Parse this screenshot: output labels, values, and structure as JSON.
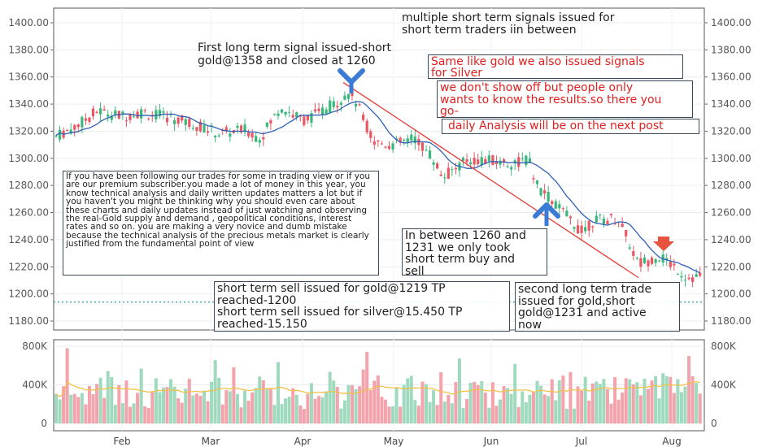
{
  "chart_data": {
    "type": "candlestick",
    "price_axis": {
      "ylim": [
        1180,
        1400
      ],
      "ticks": [
        "1400.00",
        "1380.00",
        "1360.00",
        "1340.00",
        "1320.00",
        "1300.00",
        "1280.00",
        "1260.00",
        "1240.00",
        "1220.00",
        "1200.00",
        "1180.00"
      ]
    },
    "volume_axis": {
      "ylim": [
        0,
        900000
      ],
      "ticks": [
        "800K",
        "400K",
        "0"
      ]
    },
    "x_ticks": [
      "Feb",
      "Mar",
      "Apr",
      "May",
      "Jun",
      "Jul",
      "Aug"
    ],
    "dotted_level": 1194,
    "trendline": {
      "from": [
        "Apr 20",
        1356
      ],
      "to": [
        "Jul 24",
        1212
      ]
    },
    "colors": {
      "up": "#3ab77c",
      "down": "#ea5763",
      "ma": "#2f5fb3",
      "trend": "#e53935",
      "volume_ma": "#f2c14a",
      "arrow_blue": "#3a7bd5",
      "arrow_red": "#e8533f"
    },
    "grid": true
  },
  "annotations": {
    "multiple": "multiple short term signals issued for\nshort term traders iin between",
    "first_long": "First long term signal issued-short\ngold@1358 and closed at 1260",
    "silver": "Same like gold we also issued signals\nfor Silver",
    "showoff": "we don't show off but people only\nwants to know the results.so there you\ngo-",
    "daily": "daily Analysis will be on the next post",
    "paragraph": "If you have been following our trades for some in trading view or if you are our premium subscriber.you made a lot of money in this year, you know technical analysis and daily written updates matters a lot but if you haven't you might be thinking why you should even care about these charts and daily updates instead of just watching and observing the real-Gold supply and demand , geopolitical conditions, interest rates and so on. you are making a very novice and dumb mistake because the technical analysis of the precious metals market is clearly justified from the fundamental point of view",
    "between": "In between 1260 and\n1231 we only took\nshort term buy and\nsell",
    "short_sells": "short term sell issued for gold@1219 TP\nreached-1200\nshort term sell issued for silver@15.450 TP\nreached-15.150",
    "second_long": "second long term trade\nissued for gold,short\ngold@1231 and active\nnow"
  }
}
